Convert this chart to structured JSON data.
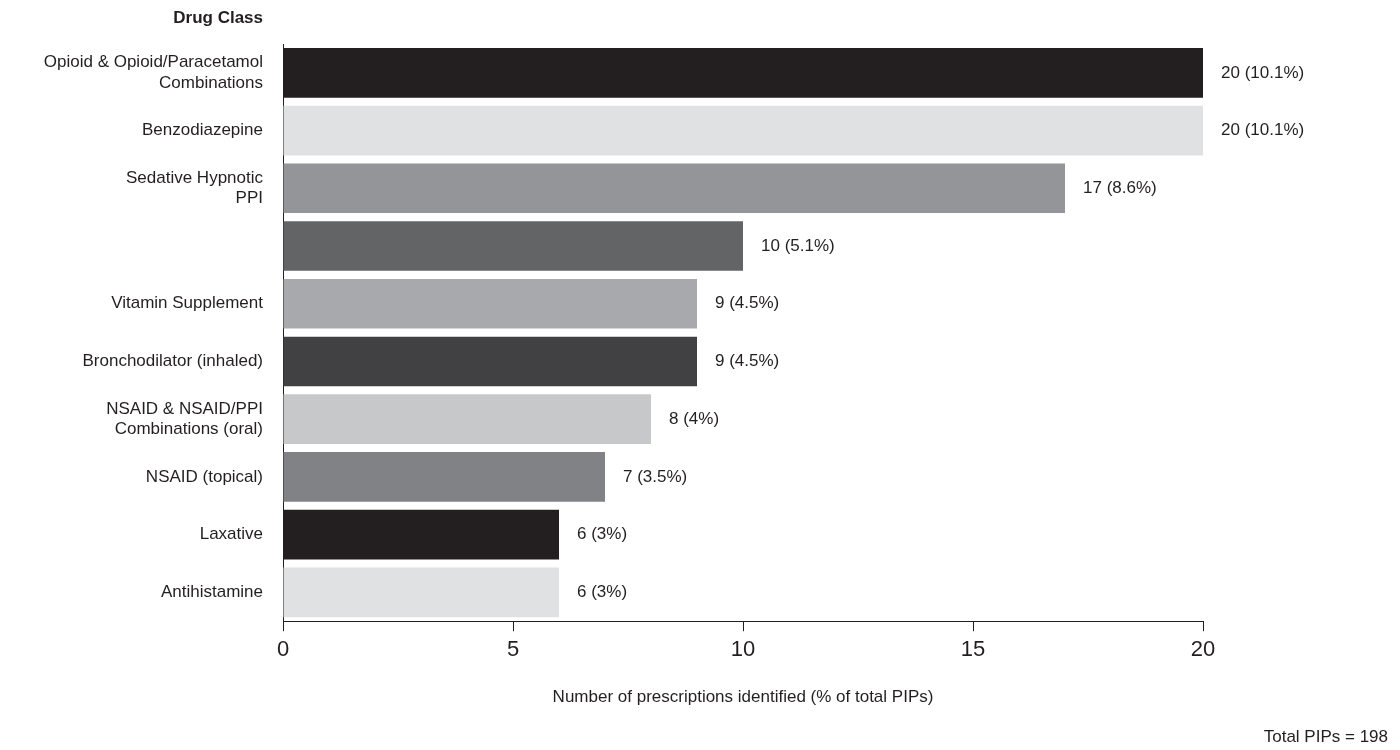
{
  "chart_data": {
    "type": "bar",
    "orientation": "horizontal",
    "ylabel": "Drug Class",
    "xlabel": "Number of prescriptions identified (% of total PIPs)",
    "categories": [
      "Opioid & Opioid/Paracetamol\nCombinations",
      "Benzodiazepine",
      "Sedative Hypnotic\nPPI",
      null,
      "Vitamin Supplement",
      "Bronchodilator (inhaled)",
      "NSAID & NSAID/PPI\nCombinations (oral)",
      "NSAID (topical)",
      "Laxative",
      "Antihistamine"
    ],
    "values": [
      20,
      20,
      17,
      10,
      9,
      9,
      8,
      7,
      6,
      6
    ],
    "colors": [
      "#231f20",
      "#e0e1e3",
      "#939598",
      "#636466",
      "#a7a9ac",
      "#414042",
      "#c7c8ca",
      "#808285",
      "#231f20",
      "#e0e1e3"
    ],
    "value_labels": [
      "20 (10.1%)",
      "20 (10.1%)",
      "17 (8.6%)",
      "10 (5.1%)",
      "9 (4.5%)",
      "9 (4.5%)",
      "8 (4%)",
      "7 (3.5%)",
      "6 (3%)",
      "6 (3%)"
    ],
    "xlim": [
      0,
      20
    ],
    "xticks": [
      0,
      5,
      10,
      15,
      20
    ],
    "grid": false,
    "legend": false,
    "annotations": [
      "Total PIPs = 198"
    ]
  }
}
